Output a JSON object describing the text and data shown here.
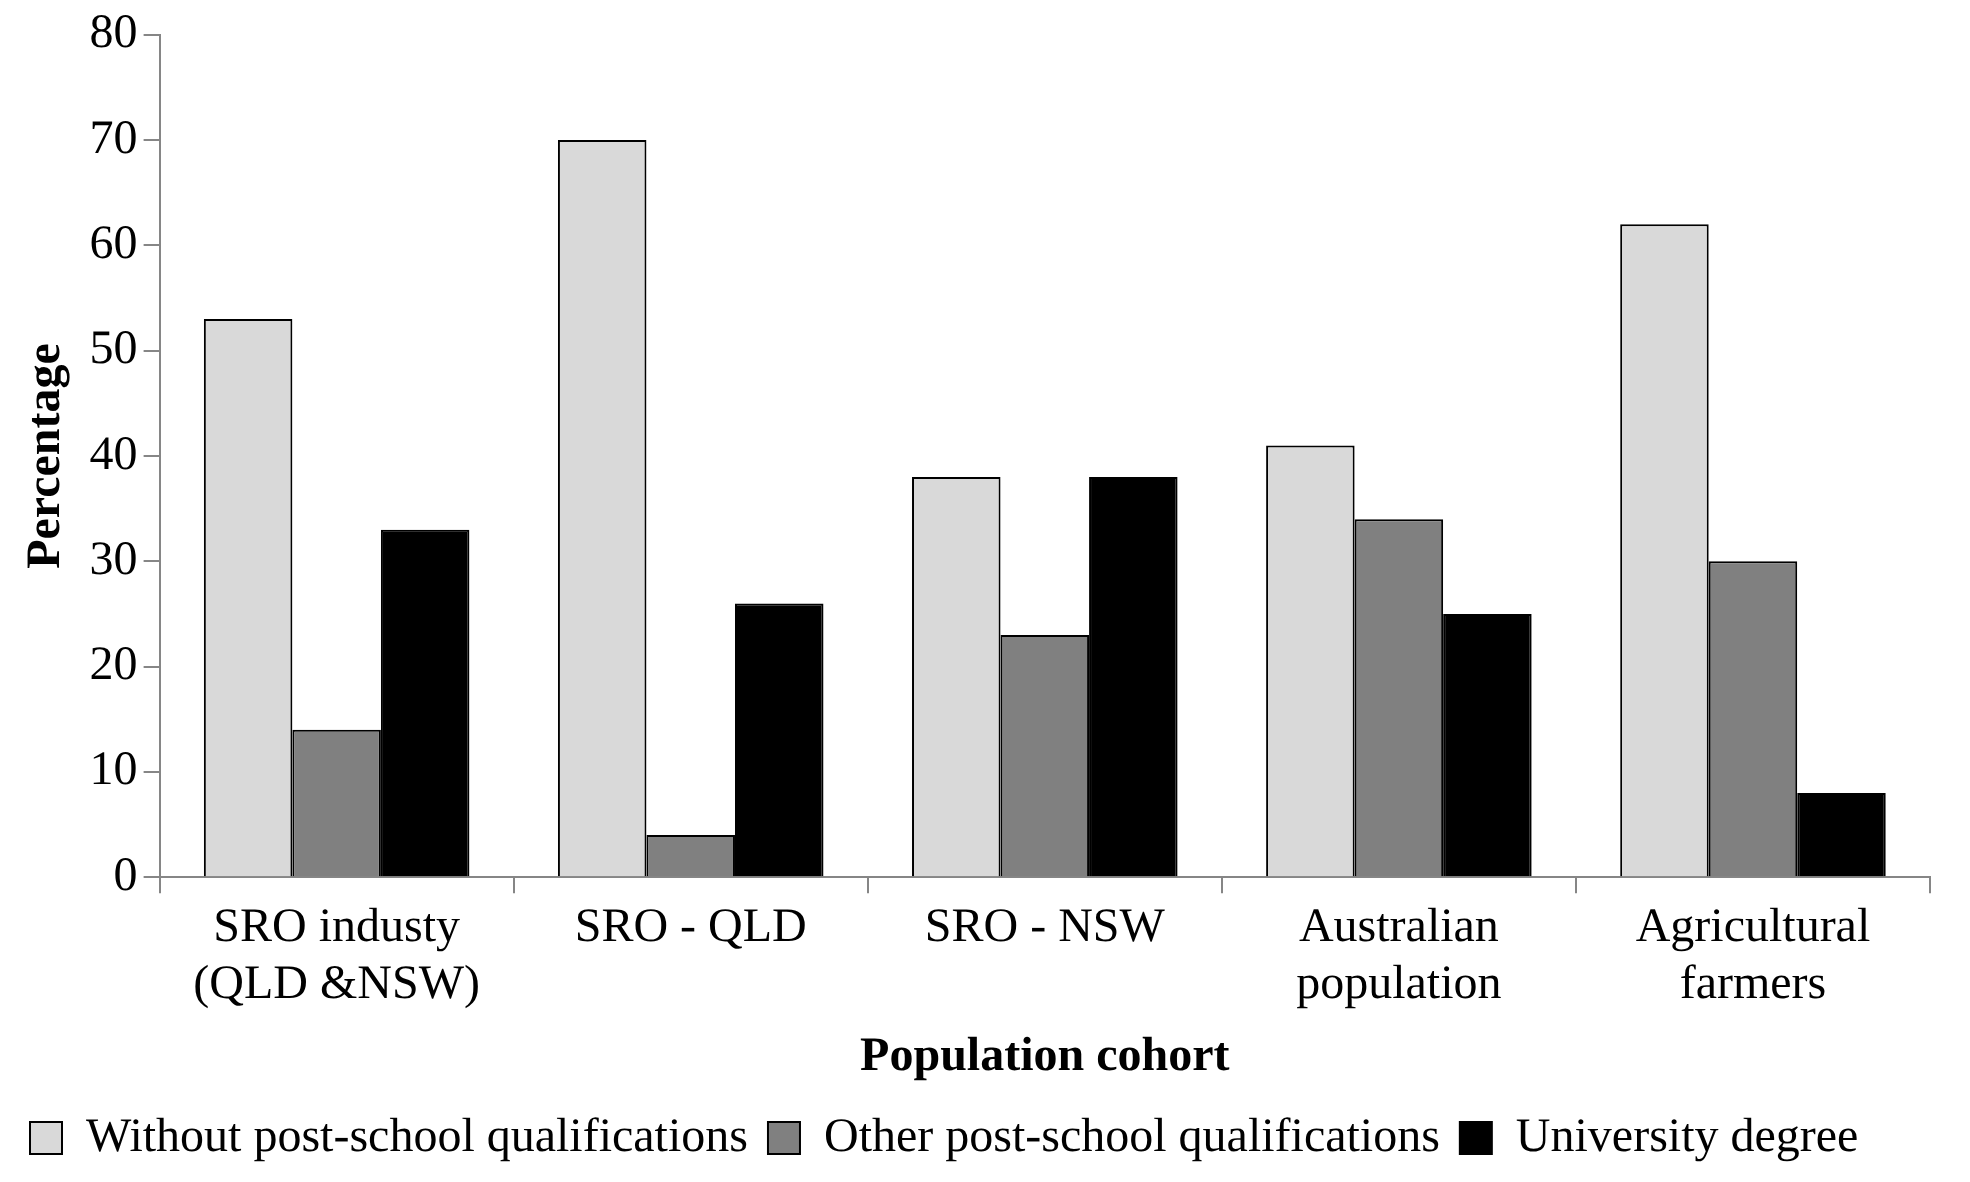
{
  "chart_data": {
    "type": "bar",
    "xlabel": "Population cohort",
    "ylabel": "Percentage",
    "categories": [
      "SRO industy (QLD &NSW)",
      "SRO - QLD",
      "SRO - NSW",
      "Australian population",
      "Agricultural farmers"
    ],
    "series": [
      {
        "name": "Without post-school qualifications",
        "color": "#d9d9d9",
        "values": [
          53,
          70,
          38,
          41,
          62
        ]
      },
      {
        "name": "Other post-school qualifications",
        "color": "#808080",
        "values": [
          14,
          4,
          23,
          34,
          30
        ]
      },
      {
        "name": "University degree",
        "color": "#000000",
        "values": [
          33,
          26,
          38,
          25,
          8
        ]
      }
    ],
    "ylim": [
      0,
      80
    ],
    "yticks": [
      0,
      10,
      20,
      30,
      40,
      50,
      60,
      70,
      80
    ],
    "grid": false,
    "legend": "bottom"
  }
}
